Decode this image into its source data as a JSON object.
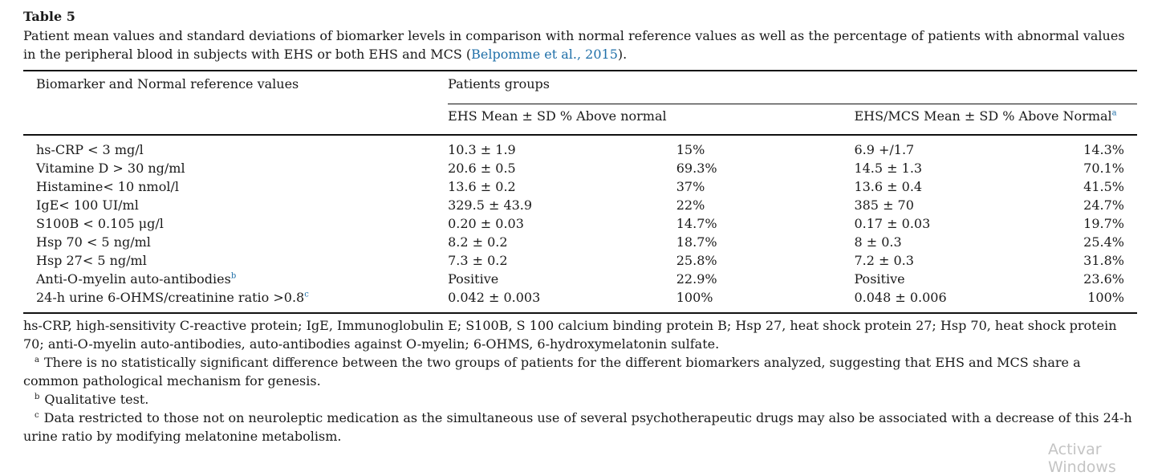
{
  "table": {
    "label": "Table 5",
    "caption_text": "Patient mean values and standard deviations of biomarker levels in comparison with normal reference values as well as the percentage of patients with abnormal values in the peripheral blood in subjects with EHS or both EHS and MCS (",
    "caption_cite": "Belpomme et al., 2015",
    "caption_end": ").",
    "header": {
      "col0": "Biomarker and Normal reference values",
      "group": "Patients groups",
      "ehs": "EHS Mean ± SD % Above normal",
      "ehsmcs": "EHS/MCS Mean ± SD % Above Normal",
      "ehsmcs_sup": "a"
    },
    "rows": [
      {
        "name": "hs-CRP < 3 mg/l",
        "sup": "",
        "ehs_mean": "10.3 ± 1.9",
        "ehs_pct": "15%",
        "mcs_mean": "6.9 +/1.7",
        "mcs_pct": "14.3%"
      },
      {
        "name": "Vitamine D > 30 ng/ml",
        "sup": "",
        "ehs_mean": "20.6 ± 0.5",
        "ehs_pct": "69.3%",
        "mcs_mean": "14.5 ± 1.3",
        "mcs_pct": "70.1%"
      },
      {
        "name": "Histamine< 10 nmol/l",
        "sup": "",
        "ehs_mean": "13.6 ± 0.2",
        "ehs_pct": "37%",
        "mcs_mean": "13.6 ± 0.4",
        "mcs_pct": "41.5%"
      },
      {
        "name": "IgE< 100 UI/ml",
        "sup": "",
        "ehs_mean": "329.5 ± 43.9",
        "ehs_pct": "22%",
        "mcs_mean": "385 ± 70",
        "mcs_pct": "24.7%"
      },
      {
        "name": "S100B  < 0.105 μg/l",
        "sup": "",
        "ehs_mean": "0.20 ± 0.03",
        "ehs_pct": "14.7%",
        "mcs_mean": "0.17 ± 0.03",
        "mcs_pct": "19.7%"
      },
      {
        "name": "Hsp 70 < 5 ng/ml",
        "sup": "",
        "ehs_mean": "8.2 ± 0.2",
        "ehs_pct": "18.7%",
        "mcs_mean": "8 ± 0.3",
        "mcs_pct": "25.4%"
      },
      {
        "name": "Hsp 27< 5 ng/ml",
        "sup": "",
        "ehs_mean": "7.3 ± 0.2",
        "ehs_pct": "25.8%",
        "mcs_mean": "7.2 ± 0.3",
        "mcs_pct": "31.8%"
      },
      {
        "name": "Anti-O-myelin auto-antibodies",
        "sup": "b",
        "ehs_mean": "Positive",
        "ehs_pct": "22.9%",
        "mcs_mean": "Positive",
        "mcs_pct": "23.6%"
      },
      {
        "name": "24-h urine 6-OHMS/creatinine ratio >0.8",
        "sup": "c",
        "ehs_mean": "0.042 ± 0.003",
        "ehs_pct": "100%",
        "mcs_mean": "0.048 ± 0.006",
        "mcs_pct": "100%"
      }
    ],
    "abbreviations": "hs-CRP, high-sensitivity C-reactive protein; IgE, Immunoglobulin E; S100B, S 100 calcium binding protein B; Hsp 27, heat shock protein 27; Hsp 70, heat shock protein 70; anti-O-myelin auto-antibodies, auto-antibodies against O-myelin; 6-OHMS, 6-hydroxymelatonin sulfate.",
    "footnotes": [
      {
        "mark": "a",
        "text": "There is no statistically significant difference between the two groups of patients for the different biomarkers analyzed, suggesting that EHS and MCS share a common pathological mechanism for genesis."
      },
      {
        "mark": "b",
        "text": "Qualitative test."
      },
      {
        "mark": "c",
        "text": "Data restricted to those not on neuroleptic medication as the simultaneous use of several psychotherapeutic drugs may also be associated with a decrease of this 24-h urine ratio by modifying melatonine metabolism."
      }
    ]
  },
  "watermark": "Activar Windows",
  "colors": {
    "link": "#1f6fa8",
    "text": "#1a1a1a",
    "watermark": "#c4c4c4"
  }
}
